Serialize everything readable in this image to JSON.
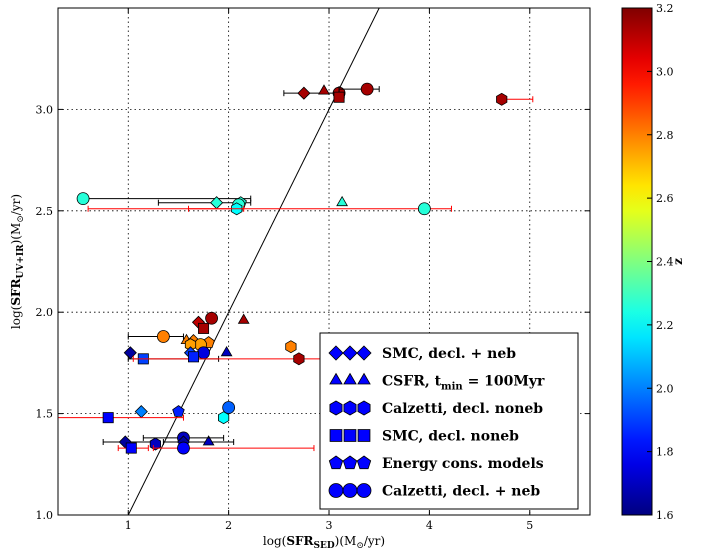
{
  "chart_data": {
    "type": "scatter",
    "xlabel_parts": [
      "log(",
      "SFR",
      "SED",
      ")(M",
      "⊙",
      "/yr)"
    ],
    "ylabel_parts": [
      "log(",
      "SFR",
      "UV+IR",
      ")(M",
      "⊙",
      "/yr)"
    ],
    "xlim": [
      0.3,
      5.6
    ],
    "ylim": [
      1.0,
      3.5
    ],
    "x_ticks": [
      1,
      2,
      3,
      4,
      5
    ],
    "y_ticks": [
      1.0,
      1.5,
      2.0,
      2.5,
      3.0
    ],
    "y_tick_labels": [
      "1.0",
      "1.5",
      "2.0",
      "2.5",
      "3.0"
    ],
    "grid": true,
    "one_to_one_line": true,
    "legend_position": "lower-right",
    "legend": [
      {
        "marker": "diamond",
        "label": "SMC, decl. + neb"
      },
      {
        "marker": "triangle",
        "label": "CSFR, t_min = 100Myr"
      },
      {
        "marker": "hexagon",
        "label": "Calzetti, decl. noneb"
      },
      {
        "marker": "square",
        "label": "SMC, decl. noneb"
      },
      {
        "marker": "pentagon",
        "label": "Energy cons. models"
      },
      {
        "marker": "circle",
        "label": "Calzetti, decl. + neb"
      }
    ],
    "legend_text": [
      [
        "SMC",
        ", decl. + neb",
        ""
      ],
      [
        "CSFR",
        ", t",
        "min",
        " = 100Myr"
      ],
      [
        "Calzetti",
        ", decl. noneb",
        ""
      ],
      [
        "SMC",
        ", decl. noneb",
        ""
      ],
      [
        "Energy cons. models",
        "",
        ""
      ],
      [
        "Calzetti",
        ", decl. + neb",
        ""
      ]
    ],
    "colorbar": {
      "label": "z",
      "min": 1.6,
      "max": 3.2,
      "ticks": [
        1.6,
        1.8,
        2.0,
        2.2,
        2.4,
        2.6,
        2.8,
        3.0,
        3.2
      ],
      "tick_labels": [
        "1.6",
        "1.8",
        "2.0",
        "2.2",
        "2.4",
        "2.6",
        "2.8",
        "3.0",
        "3.2"
      ],
      "colormap": "jet"
    },
    "points": [
      {
        "m": "diamond",
        "x": 2.75,
        "y": 3.08,
        "z": 3.14,
        "xerr": [
          2.55,
          3.15
        ]
      },
      {
        "m": "triangle",
        "x": 2.95,
        "y": 3.09,
        "z": 3.14
      },
      {
        "m": "hexagon",
        "x": 3.1,
        "y": 3.07,
        "z": 3.14
      },
      {
        "m": "circle",
        "x": 3.1,
        "y": 3.08,
        "z": 3.14
      },
      {
        "m": "circle",
        "x": 3.38,
        "y": 3.1,
        "z": 3.14,
        "xerr": [
          3.1,
          3.5
        ]
      },
      {
        "m": "square",
        "x": 3.1,
        "y": 3.06,
        "z": 3.14
      },
      {
        "m": "hexagon",
        "x": 4.72,
        "y": 3.05,
        "z": 3.14,
        "xerr": [
          4.72,
          5.03
        ],
        "ecolor": "red"
      },
      {
        "m": "circle",
        "x": 0.55,
        "y": 2.56,
        "z": 2.26,
        "xerr": [
          0.55,
          2.22
        ]
      },
      {
        "m": "diamond",
        "x": 1.88,
        "y": 2.54,
        "z": 2.26,
        "xerr": [
          1.3,
          2.22
        ]
      },
      {
        "m": "pentagon",
        "x": 2.12,
        "y": 2.54,
        "z": 2.26
      },
      {
        "m": "circle",
        "x": 2.1,
        "y": 2.53,
        "z": 2.26
      },
      {
        "m": "hexagon",
        "x": 2.08,
        "y": 2.51,
        "z": 2.2,
        "xerr": [
          1.6,
          2.15
        ],
        "ecolor": "red"
      },
      {
        "m": "triangle",
        "x": 3.13,
        "y": 2.54,
        "z": 2.26
      },
      {
        "m": "circle",
        "x": 3.95,
        "y": 2.51,
        "z": 2.26,
        "xerr": [
          0.6,
          4.22
        ],
        "ecolor": "red"
      },
      {
        "m": "triangle",
        "x": 2.15,
        "y": 1.96,
        "z": 3.14
      },
      {
        "m": "diamond",
        "x": 1.7,
        "y": 1.95,
        "z": 3.1
      },
      {
        "m": "circle",
        "x": 1.83,
        "y": 1.97,
        "z": 3.14
      },
      {
        "m": "square",
        "x": 1.75,
        "y": 1.92,
        "z": 3.14
      },
      {
        "m": "circle",
        "x": 1.35,
        "y": 1.88,
        "z": 2.8,
        "xerr": [
          1.0,
          1.55
        ]
      },
      {
        "m": "triangle",
        "x": 1.58,
        "y": 1.86,
        "z": 2.8
      },
      {
        "m": "diamond",
        "x": 1.65,
        "y": 1.86,
        "z": 2.8
      },
      {
        "m": "pentagon",
        "x": 1.8,
        "y": 1.85,
        "z": 2.8
      },
      {
        "m": "circle",
        "x": 1.72,
        "y": 1.84,
        "z": 2.75
      },
      {
        "m": "hexagon",
        "x": 1.62,
        "y": 1.84,
        "z": 2.75
      },
      {
        "m": "hexagon",
        "x": 2.62,
        "y": 1.83,
        "z": 2.8,
        "xerr": [
          2.58,
          2.65
        ],
        "ecolor": "red"
      },
      {
        "m": "diamond",
        "x": 1.02,
        "y": 1.8,
        "z": 1.65
      },
      {
        "m": "triangle",
        "x": 1.98,
        "y": 1.8,
        "z": 1.7
      },
      {
        "m": "circle",
        "x": 1.75,
        "y": 1.8,
        "z": 1.75
      },
      {
        "m": "diamond",
        "x": 1.62,
        "y": 1.8,
        "z": 1.9
      },
      {
        "m": "square",
        "x": 1.15,
        "y": 1.77,
        "z": 1.9,
        "xerr": [
          1.0,
          1.9
        ]
      },
      {
        "m": "hexagon",
        "x": 2.7,
        "y": 1.77,
        "z": 3.14,
        "xerr": [
          1.05,
          3.25
        ],
        "ecolor": "red"
      },
      {
        "m": "square",
        "x": 1.65,
        "y": 1.78,
        "z": 1.85
      },
      {
        "m": "diamond",
        "x": 1.13,
        "y": 1.51,
        "z": 2.0
      },
      {
        "m": "pentagon",
        "x": 1.5,
        "y": 1.51,
        "z": 1.85
      },
      {
        "m": "circle",
        "x": 2.0,
        "y": 1.53,
        "z": 1.95
      },
      {
        "m": "square",
        "x": 0.8,
        "y": 1.48,
        "z": 1.8,
        "xerr": [
          0.3,
          1.55
        ],
        "ecolor": "red"
      },
      {
        "m": "hexagon",
        "x": 1.95,
        "y": 1.48,
        "z": 2.2
      },
      {
        "m": "diamond",
        "x": 0.97,
        "y": 1.36,
        "z": 1.65,
        "xerr": [
          0.75,
          1.25
        ]
      },
      {
        "m": "triangle",
        "x": 1.8,
        "y": 1.36,
        "z": 1.7,
        "xerr": [
          1.35,
          2.05
        ]
      },
      {
        "m": "circle",
        "x": 1.55,
        "y": 1.38,
        "z": 1.7,
        "xerr": [
          1.15,
          1.95
        ]
      },
      {
        "m": "hexagon",
        "x": 1.27,
        "y": 1.35,
        "z": 1.7
      },
      {
        "m": "diamond",
        "x": 1.55,
        "y": 1.36,
        "z": 1.65
      },
      {
        "m": "square",
        "x": 1.03,
        "y": 1.33,
        "z": 1.8,
        "xerr": [
          0.9,
          1.2
        ],
        "ecolor": "red"
      },
      {
        "m": "circle",
        "x": 1.55,
        "y": 1.33,
        "z": 1.8,
        "xerr": [
          1.25,
          2.85
        ],
        "ecolor": "red"
      }
    ]
  }
}
